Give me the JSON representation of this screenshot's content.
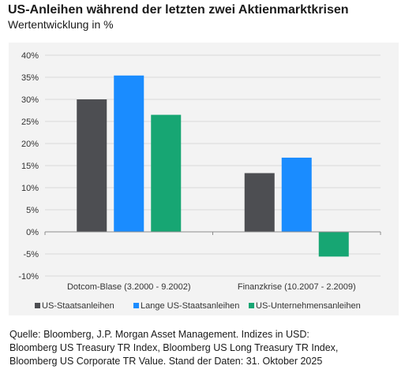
{
  "header": {
    "title": "US-Anleihen während der letzten zwei Aktienmarktkrisen",
    "subtitle": "Wertentwicklung in %"
  },
  "chart_data": {
    "type": "bar",
    "categories": [
      "Dotcom-Blase (3.2000 - 9.2002)",
      "Finanzkrise (10.2007 - 2.2009)"
    ],
    "series": [
      {
        "name": "US-Staatsanleihen",
        "values": [
          30,
          13.3
        ],
        "color": "#4d4e52"
      },
      {
        "name": "Lange US-Staatsanleihen",
        "values": [
          35.4,
          16.8
        ],
        "color": "#1a8cff"
      },
      {
        "name": "US-Unternehmensanleihen",
        "values": [
          26.5,
          -5.6
        ],
        "color": "#17a673"
      }
    ],
    "yticks": [
      "40%",
      "35%",
      "30%",
      "25%",
      "20%",
      "15%",
      "10%",
      "5%",
      "0%",
      "-5%",
      "-10%"
    ],
    "ylim": [
      -10,
      40
    ],
    "grid": true,
    "legend": "bottom"
  },
  "footer": {
    "source_lines": [
      "Quelle: Bloomberg, J.P. Morgan Asset Management. Indizes in USD:",
      "Bloomberg US Treasury TR Index, Bloomberg US Long Treasury TR Index,",
      "Bloomberg US Corporate TR Value. Stand der Daten: 31. Oktober 2025"
    ]
  }
}
